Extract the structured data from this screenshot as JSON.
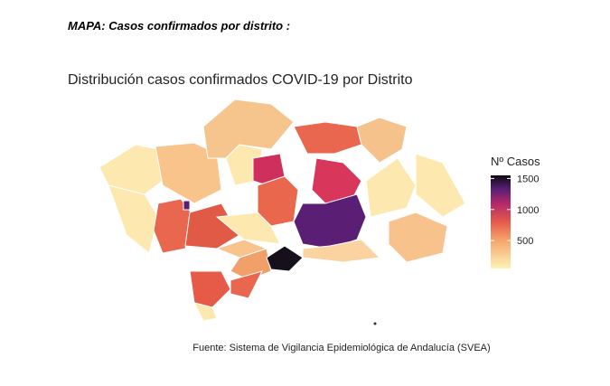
{
  "header": {
    "title": "MAPA: Casos confirmados por distrito :"
  },
  "chart_data": {
    "type": "choropleth",
    "title": "Distribución casos confirmados COVID-19 por Distrito",
    "legend": {
      "title": "Nº Casos",
      "lim": [
        50,
        1550
      ],
      "ticks": [
        500,
        1000,
        1500
      ]
    },
    "source": "Fuente: Sistema de Vigilancia Epidemiológica de Andalucía (SVEA)"
  }
}
